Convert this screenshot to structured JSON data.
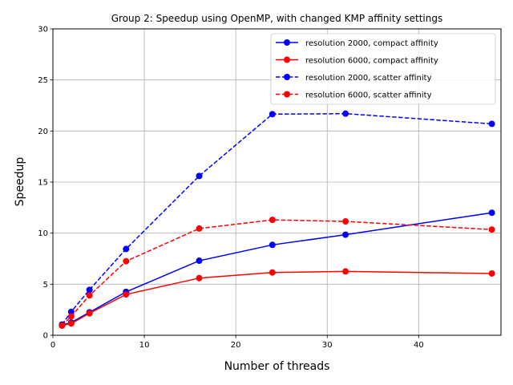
{
  "chart_data": {
    "type": "line",
    "title": "Group 2: Speedup using OpenMP, with changed KMP affinity settings",
    "xlabel": "Number of threads",
    "ylabel": "Speedup",
    "xlim": [
      0,
      49
    ],
    "ylim": [
      0,
      30
    ],
    "x_ticks": [
      0,
      10,
      20,
      30,
      40
    ],
    "y_ticks": [
      0,
      5,
      10,
      15,
      20,
      25,
      30
    ],
    "x_tick_labels": [
      "0",
      "10",
      "20",
      "30",
      "40"
    ],
    "y_tick_labels": [
      "0",
      "5",
      "10",
      "15",
      "20",
      "25",
      "30"
    ],
    "grid": true,
    "legend_position": "top-right",
    "series": [
      {
        "name": "resolution 2000, compact affinity",
        "color": "#0000ff",
        "linestyle": "solid",
        "marker": "circle",
        "x": [
          1,
          2,
          4,
          8,
          16,
          24,
          32,
          48
        ],
        "y": [
          1.0,
          1.25,
          2.25,
          4.25,
          7.3,
          8.85,
          9.85,
          12.0
        ]
      },
      {
        "name": "resolution 6000, compact affinity",
        "color": "#ff0000",
        "linestyle": "solid",
        "marker": "circle",
        "x": [
          1,
          2,
          4,
          8,
          16,
          24,
          32,
          48
        ],
        "y": [
          0.95,
          1.15,
          2.15,
          4.0,
          5.6,
          6.15,
          6.25,
          6.05
        ]
      },
      {
        "name": "resolution 2000, scatter affinity",
        "color": "#0000ff",
        "linestyle": "dashed",
        "marker": "circle",
        "x": [
          1,
          2,
          4,
          8,
          16,
          24,
          32,
          48
        ],
        "y": [
          1.05,
          2.3,
          4.45,
          8.45,
          15.6,
          21.65,
          21.7,
          20.7
        ]
      },
      {
        "name": "resolution 6000, scatter affinity",
        "color": "#ff0000",
        "linestyle": "dashed",
        "marker": "circle",
        "x": [
          1,
          2,
          4,
          8,
          16,
          24,
          32,
          48
        ],
        "y": [
          0.95,
          1.85,
          3.9,
          7.25,
          10.45,
          11.3,
          11.15,
          10.35
        ]
      }
    ]
  }
}
